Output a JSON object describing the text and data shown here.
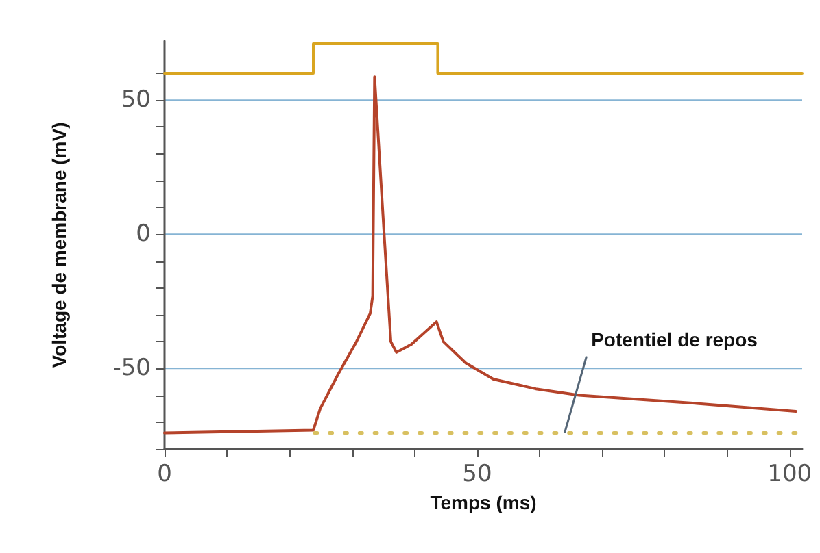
{
  "chart_data": {
    "type": "line",
    "xlabel": "Temps (ms)",
    "ylabel": "Voltage de membrane (mV)",
    "xlim": [
      0,
      102
    ],
    "xticks": [
      0,
      {
        "value": 10,
        "label": null
      },
      {
        "value": 20,
        "label": null
      },
      {
        "value": 30,
        "label": null
      },
      {
        "value": 40,
        "label": null
      },
      50,
      {
        "value": 60,
        "label": null
      },
      {
        "value": 70,
        "label": null
      },
      {
        "value": 80,
        "label": null
      },
      {
        "value": 90,
        "label": null
      },
      100
    ],
    "ylim": [
      -80,
      72
    ],
    "yticks": [
      {
        "value": -80,
        "label": null
      },
      {
        "value": -70,
        "label": null
      },
      {
        "value": -60,
        "label": null
      },
      -50,
      {
        "value": -40,
        "label": null
      },
      {
        "value": -30,
        "label": null
      },
      {
        "value": -20,
        "label": null
      },
      {
        "value": -10,
        "label": null
      },
      0,
      {
        "value": 10,
        "label": null
      },
      {
        "value": 20,
        "label": null
      },
      {
        "value": 30,
        "label": null
      },
      {
        "value": 40,
        "label": null
      },
      50,
      {
        "value": 60,
        "label": null
      }
    ],
    "grid": "y",
    "marker": "none",
    "line_style": "solid",
    "series": [
      {
        "color": "#d9a520",
        "x": [
          0,
          23.8,
          23.8,
          43.7,
          43.7,
          102
        ],
        "values": [
          60,
          60,
          71,
          71,
          60,
          60
        ]
      },
      {
        "color": "#b5432a",
        "x": [
          0,
          23.8,
          24.9,
          27.8,
          30.7,
          32.9,
          33.3,
          33.6,
          35.1,
          36.2,
          37.1,
          39.5,
          43.5,
          44.6,
          48.2,
          52.6,
          59.4,
          66.3,
          84.9,
          101
        ],
        "values": [
          -74,
          -73,
          -65,
          -52,
          -40,
          -29.5,
          -23,
          58.7,
          1,
          -40,
          -44,
          -41,
          -32.6,
          -40,
          -48,
          -54,
          -57.6,
          -60,
          -63,
          -66
        ]
      },
      {
        "color": "#d8c060",
        "x": [
          24,
          101
        ],
        "values": [
          -74,
          -74
        ],
        "line_style": "dotted"
      }
    ],
    "annotations": [
      {
        "text": "Potentiel de repos",
        "x": 64,
        "y": -74
      }
    ]
  }
}
